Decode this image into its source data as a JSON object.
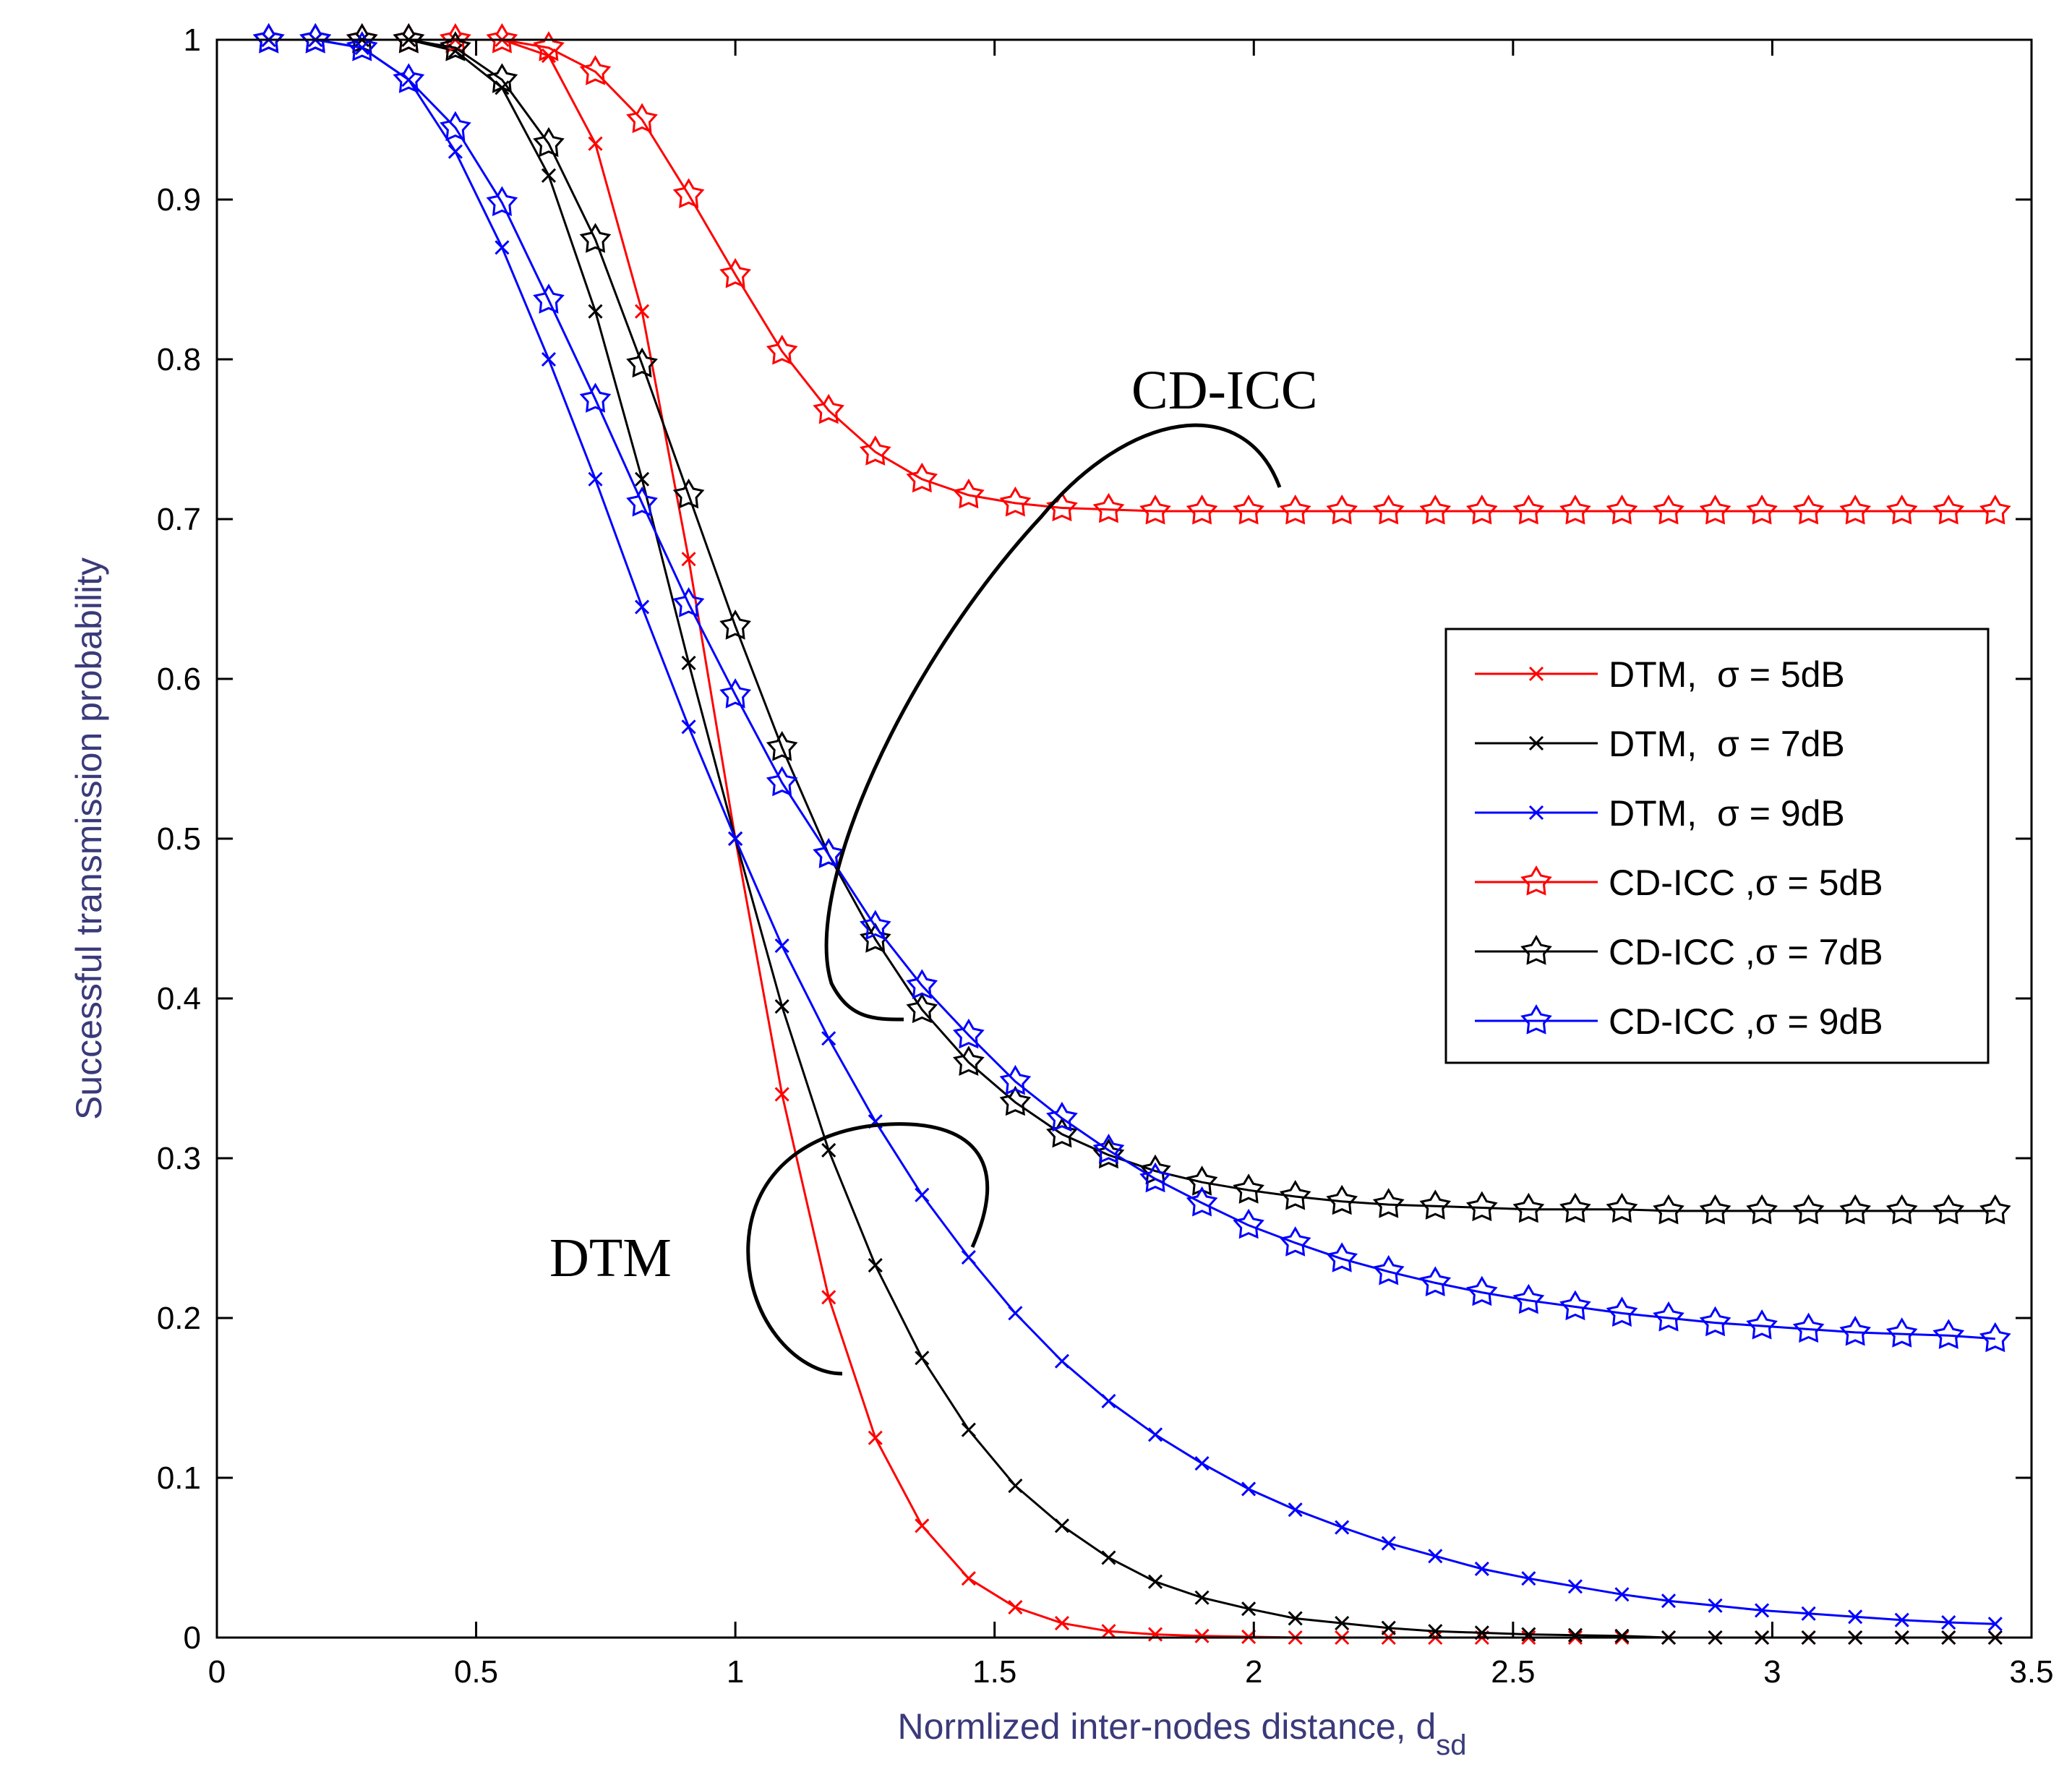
{
  "chart_data": {
    "type": "line",
    "title": "",
    "xlabel": "Normlized inter-nodes distance, d",
    "xlabel_sub": "sd",
    "ylabel": "Successful transmission probability",
    "xlim": [
      0,
      3.5
    ],
    "ylim": [
      0,
      1
    ],
    "xticks": [
      "0",
      "0.5",
      "1",
      "1.5",
      "2",
      "2.5",
      "3",
      "3.5"
    ],
    "yticks": [
      "0",
      "0.1",
      "0.2",
      "0.3",
      "0.4",
      "0.5",
      "0.6",
      "0.7",
      "0.8",
      "0.9",
      "1"
    ],
    "x": [
      0.1,
      0.19,
      0.28,
      0.37,
      0.46,
      0.55,
      0.64,
      0.73,
      0.82,
      0.91,
      1.0,
      1.09,
      1.18,
      1.27,
      1.36,
      1.45,
      1.54,
      1.63,
      1.72,
      1.81,
      1.9,
      1.99,
      2.08,
      2.17,
      2.26,
      2.35,
      2.44,
      2.53,
      2.62,
      2.71,
      2.8,
      2.89,
      2.98,
      3.07,
      3.16,
      3.25,
      3.34,
      3.43
    ],
    "series": [
      {
        "name": "DTM,  σ = 5dB",
        "color": "#ff0000",
        "marker": "x",
        "values": [
          1,
          1,
          1,
          1,
          1,
          1,
          0.99,
          0.935,
          0.83,
          0.675,
          0.5,
          0.34,
          0.213,
          0.125,
          0.07,
          0.037,
          0.019,
          0.009,
          0.004,
          0.002,
          0.001,
          0.0005,
          0,
          0,
          0,
          0,
          0,
          0,
          0,
          0,
          0,
          0,
          0,
          0,
          0,
          0,
          0,
          0
        ]
      },
      {
        "name": "DTM,  σ = 7dB",
        "color": "#000000",
        "marker": "x",
        "values": [
          1,
          1,
          1,
          1,
          0.993,
          0.97,
          0.915,
          0.83,
          0.725,
          0.61,
          0.5,
          0.395,
          0.305,
          0.233,
          0.175,
          0.13,
          0.095,
          0.07,
          0.05,
          0.035,
          0.025,
          0.018,
          0.012,
          0.009,
          0.006,
          0.004,
          0.003,
          0.002,
          0.0015,
          0.001,
          0,
          0,
          0,
          0,
          0,
          0,
          0,
          0
        ]
      },
      {
        "name": "DTM,  σ = 9dB",
        "color": "#0000ff",
        "marker": "x",
        "values": [
          1,
          1,
          0.995,
          0.975,
          0.93,
          0.87,
          0.8,
          0.725,
          0.645,
          0.57,
          0.5,
          0.433,
          0.375,
          0.323,
          0.277,
          0.238,
          0.203,
          0.173,
          0.148,
          0.127,
          0.109,
          0.093,
          0.08,
          0.069,
          0.059,
          0.051,
          0.043,
          0.037,
          0.032,
          0.027,
          0.023,
          0.02,
          0.017,
          0.015,
          0.013,
          0.011,
          0.0095,
          0.0085
        ]
      },
      {
        "name": "CD-ICC ,σ = 5dB",
        "color": "#ff0000",
        "marker": "star",
        "values": [
          1,
          1,
          1,
          1,
          1,
          1,
          0.995,
          0.98,
          0.95,
          0.903,
          0.853,
          0.805,
          0.768,
          0.742,
          0.725,
          0.715,
          0.71,
          0.707,
          0.706,
          0.705,
          0.705,
          0.705,
          0.705,
          0.705,
          0.705,
          0.705,
          0.705,
          0.705,
          0.705,
          0.705,
          0.705,
          0.705,
          0.705,
          0.705,
          0.705,
          0.705,
          0.705,
          0.705
        ]
      },
      {
        "name": "CD-ICC ,σ = 7dB",
        "color": "#000000",
        "marker": "star",
        "values": [
          1,
          1,
          1,
          1,
          0.995,
          0.975,
          0.935,
          0.875,
          0.797,
          0.715,
          0.633,
          0.557,
          0.49,
          0.437,
          0.393,
          0.36,
          0.335,
          0.315,
          0.302,
          0.292,
          0.285,
          0.28,
          0.276,
          0.273,
          0.271,
          0.27,
          0.269,
          0.268,
          0.268,
          0.268,
          0.267,
          0.267,
          0.267,
          0.267,
          0.267,
          0.267,
          0.267,
          0.267
        ]
      },
      {
        "name": "CD-ICC ,σ = 9dB",
        "color": "#0000ff",
        "marker": "star",
        "values": [
          1,
          1,
          0.995,
          0.975,
          0.945,
          0.898,
          0.837,
          0.775,
          0.71,
          0.647,
          0.59,
          0.535,
          0.49,
          0.445,
          0.408,
          0.377,
          0.348,
          0.325,
          0.305,
          0.287,
          0.272,
          0.258,
          0.247,
          0.237,
          0.229,
          0.222,
          0.216,
          0.211,
          0.207,
          0.203,
          0.2,
          0.197,
          0.195,
          0.193,
          0.191,
          0.19,
          0.189,
          0.187
        ]
      }
    ],
    "legend_position": "center-right",
    "annotations": [
      "CD-ICC",
      "DTM"
    ]
  }
}
